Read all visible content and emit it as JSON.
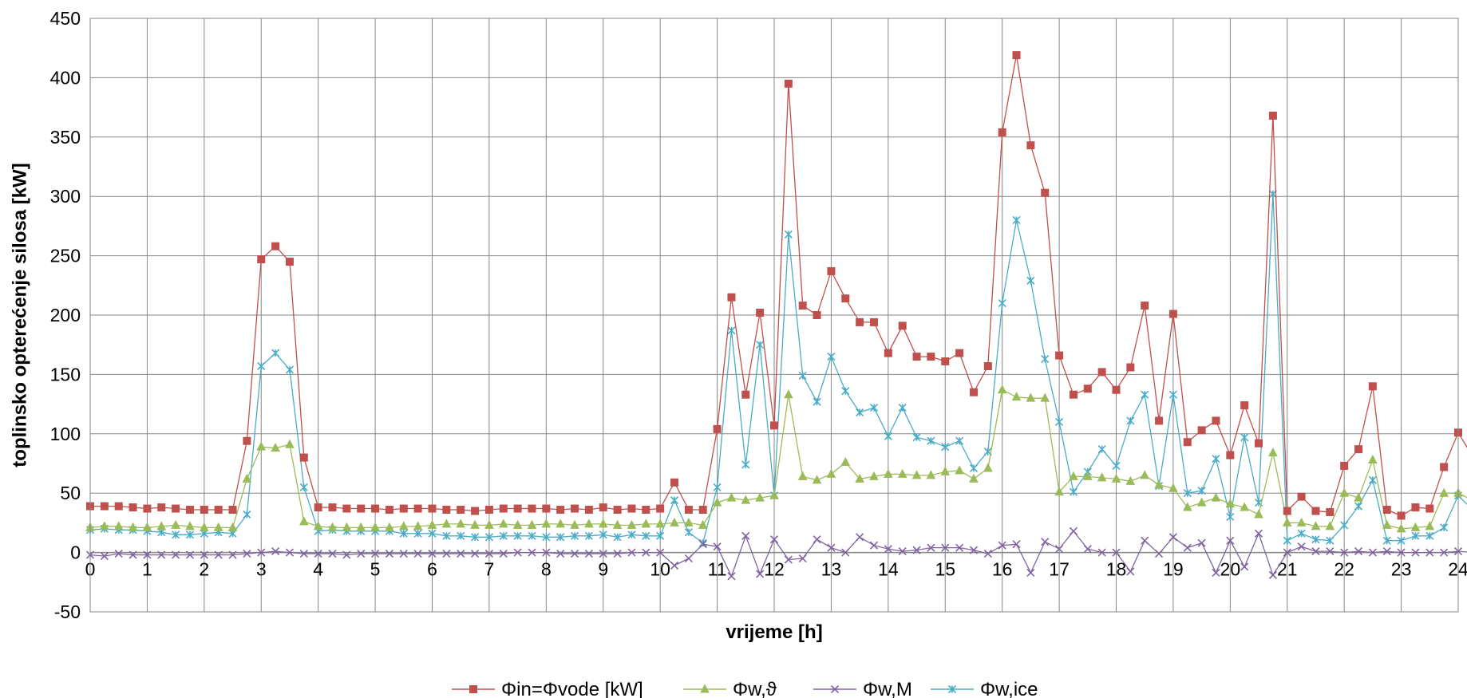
{
  "chart_data": {
    "type": "line",
    "title": "",
    "xlabel": "vrijeme [h]",
    "ylabel": "toplinsko opterećenje silosa [kW]",
    "xlim": [
      0,
      24
    ],
    "ylim": [
      -50,
      450
    ],
    "xticks": [
      0,
      1,
      2,
      3,
      4,
      5,
      6,
      7,
      8,
      9,
      10,
      11,
      12,
      13,
      14,
      15,
      16,
      17,
      18,
      19,
      20,
      21,
      22,
      23,
      24
    ],
    "yticks": [
      -50,
      0,
      50,
      100,
      150,
      200,
      250,
      300,
      350,
      400,
      450
    ],
    "grid": true,
    "legend_position": "bottom",
    "x_step_h": 0.25,
    "series": [
      {
        "name": "Φin=Φvode [kW]",
        "color": "#c0504d",
        "marker": "square",
        "values": [
          39,
          39,
          39,
          38,
          37,
          38,
          37,
          36,
          36,
          36,
          36,
          94,
          247,
          258,
          245,
          80,
          38,
          38,
          37,
          37,
          37,
          36,
          37,
          37,
          37,
          36,
          36,
          35,
          36,
          37,
          37,
          37,
          37,
          36,
          37,
          36,
          38,
          36,
          37,
          36,
          37,
          59,
          36,
          36,
          104,
          215,
          133,
          202,
          107,
          395,
          208,
          200,
          237,
          214,
          194,
          194,
          168,
          191,
          165,
          165,
          161,
          168,
          135,
          157,
          354,
          419,
          343,
          303,
          166,
          133,
          138,
          152,
          137,
          156,
          208,
          111,
          201,
          93,
          103,
          111,
          82,
          124,
          92,
          368,
          35,
          47,
          35,
          34,
          73,
          87,
          140,
          36,
          31,
          38,
          37,
          72,
          101,
          81
        ]
      },
      {
        "name": "Φw,ϑ",
        "color": "#9bbb59",
        "marker": "triangle",
        "values": [
          21,
          22,
          22,
          21,
          21,
          22,
          23,
          22,
          21,
          21,
          21,
          62,
          89,
          88,
          91,
          26,
          22,
          21,
          21,
          21,
          21,
          21,
          22,
          22,
          23,
          24,
          24,
          23,
          23,
          24,
          23,
          23,
          24,
          24,
          23,
          24,
          24,
          23,
          23,
          24,
          24,
          25,
          25,
          23,
          42,
          46,
          44,
          46,
          48,
          133,
          64,
          61,
          66,
          76,
          62,
          64,
          66,
          66,
          65,
          65,
          68,
          69,
          62,
          71,
          137,
          131,
          130,
          130,
          51,
          64,
          64,
          63,
          62,
          60,
          65,
          57,
          54,
          38,
          42,
          46,
          41,
          38,
          32,
          84,
          25,
          25,
          22,
          22,
          50,
          46,
          78,
          23,
          20,
          21,
          22,
          50,
          50,
          44
        ]
      },
      {
        "name": "Φw,M",
        "color": "#8064a2",
        "marker": "x",
        "values": [
          -2,
          -3,
          -1,
          -2,
          -2,
          -2,
          -2,
          -2,
          -2,
          -2,
          -2,
          -1,
          0,
          1,
          0,
          -1,
          -1,
          -1,
          -2,
          -1,
          -1,
          -1,
          -1,
          -1,
          -1,
          -1,
          -1,
          -1,
          -1,
          -1,
          0,
          0,
          0,
          -1,
          -1,
          -1,
          -1,
          -1,
          0,
          0,
          0,
          -11,
          -5,
          7,
          5,
          -20,
          14,
          -18,
          11,
          -6,
          -5,
          11,
          4,
          0,
          13,
          6,
          3,
          1,
          2,
          4,
          4,
          4,
          2,
          -1,
          6,
          7,
          -17,
          9,
          3,
          18,
          3,
          0,
          0,
          -16,
          10,
          -1,
          13,
          4,
          8,
          -17,
          10,
          -12,
          16,
          -19,
          0,
          5,
          1,
          1,
          0,
          1,
          0,
          1,
          0,
          0,
          0,
          0,
          1,
          0
        ]
      },
      {
        "name": "Φw,ice",
        "color": "#4bacc6",
        "marker": "star",
        "values": [
          19,
          20,
          19,
          19,
          18,
          17,
          15,
          15,
          16,
          17,
          16,
          32,
          157,
          168,
          154,
          55,
          18,
          19,
          18,
          18,
          18,
          18,
          16,
          16,
          16,
          14,
          14,
          13,
          13,
          14,
          14,
          14,
          13,
          13,
          14,
          14,
          15,
          13,
          15,
          14,
          14,
          44,
          17,
          8,
          55,
          187,
          74,
          175,
          48,
          268,
          149,
          127,
          165,
          136,
          118,
          122,
          98,
          122,
          97,
          94,
          89,
          94,
          71,
          85,
          210,
          280,
          229,
          163,
          110,
          51,
          68,
          87,
          73,
          111,
          133,
          56,
          133,
          50,
          52,
          79,
          30,
          97,
          42,
          302,
          10,
          16,
          11,
          10,
          23,
          39,
          61,
          10,
          10,
          14,
          14,
          21,
          48,
          36
        ]
      }
    ]
  }
}
